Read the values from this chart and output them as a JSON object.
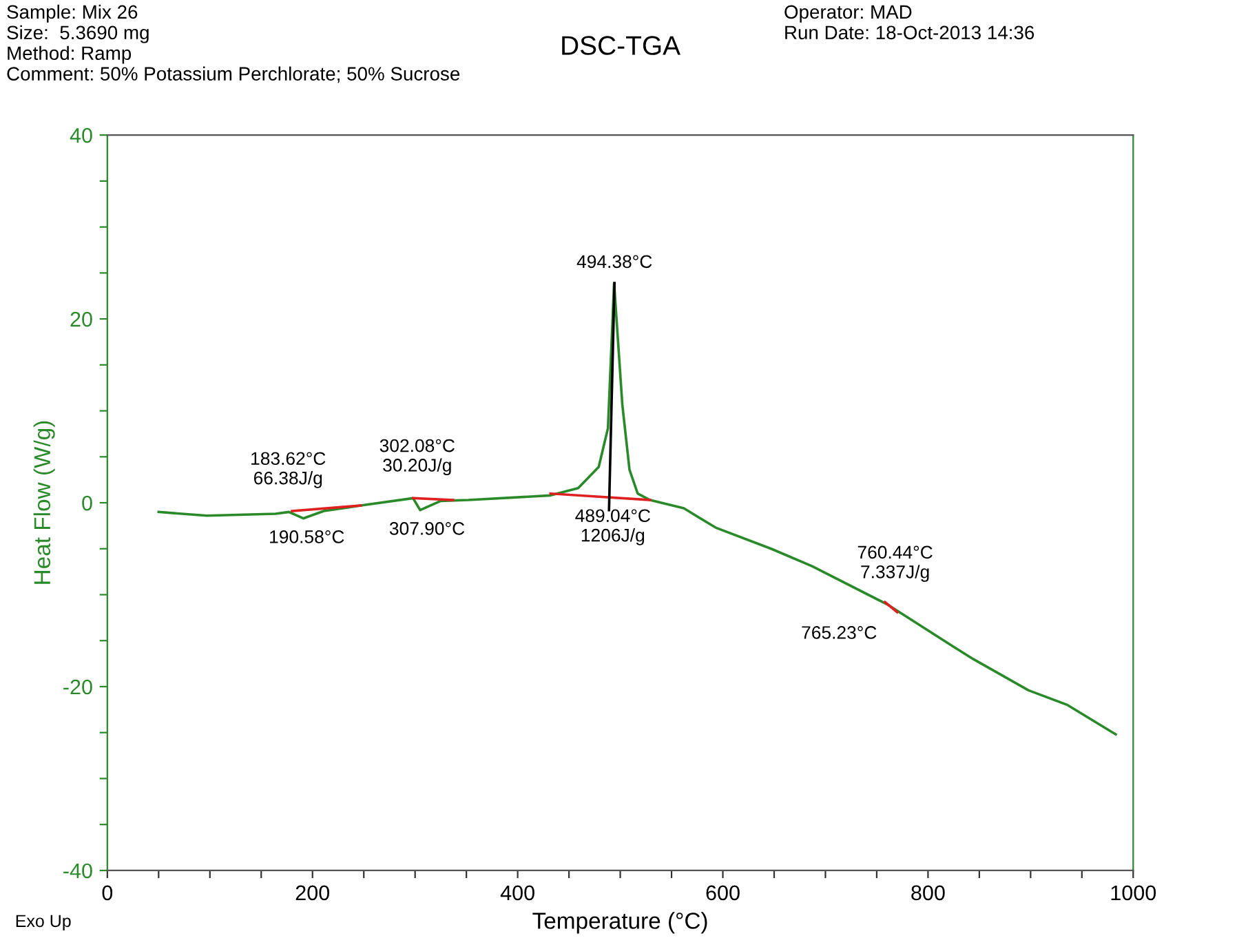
{
  "chart_data": {
    "type": "line",
    "title": "DSC-TGA",
    "xlabel": "Temperature (°C)",
    "ylabel": "Heat Flow (W/g)",
    "xlim": [
      0,
      1000
    ],
    "ylim": [
      -40,
      40
    ],
    "xticks": [
      0,
      {
        "value": 50,
        "label": null
      },
      200,
      {
        "value": 100,
        "label": null
      },
      {
        "value": 150,
        "label": null
      },
      {
        "value": 250,
        "label": null
      },
      {
        "value": 300,
        "label": null
      },
      {
        "value": 350,
        "label": null
      },
      400,
      {
        "value": 450,
        "label": null
      },
      {
        "value": 500,
        "label": null
      },
      {
        "value": 550,
        "label": null
      },
      600,
      {
        "value": 650,
        "label": null
      },
      {
        "value": 700,
        "label": null
      },
      {
        "value": 750,
        "label": null
      },
      800,
      {
        "value": 850,
        "label": null
      },
      {
        "value": 900,
        "label": null
      },
      {
        "value": 950,
        "label": null
      },
      1000
    ],
    "yticks": [
      -40,
      {
        "value": -35,
        "label": null
      },
      {
        "value": -30,
        "label": null
      },
      {
        "value": -25,
        "label": null
      },
      -20,
      {
        "value": -15,
        "label": null
      },
      {
        "value": -10,
        "label": null
      },
      {
        "value": -5,
        "label": null
      },
      0,
      {
        "value": 5,
        "label": null
      },
      {
        "value": 10,
        "label": null
      },
      {
        "value": 15,
        "label": null
      },
      20,
      {
        "value": 25,
        "label": null
      },
      {
        "value": 30,
        "label": null
      },
      {
        "value": 35,
        "label": null
      },
      40
    ],
    "grid": false,
    "legend": false,
    "marker": "none",
    "line_style": "solid",
    "series": [
      {
        "color": "#2a8a2a",
        "x": [
          50,
          97,
          164,
          177,
          191,
          211,
          247,
          298,
          305,
          325,
          352,
          432,
          459,
          479,
          488,
          494,
          502,
          509,
          517,
          529,
          562,
          593,
          647,
          687,
          761,
          824,
          844,
          898,
          936,
          983
        ],
        "values": [
          -1.0,
          -1.4,
          -1.2,
          -1.0,
          -1.7,
          -0.9,
          -0.3,
          0.5,
          -0.8,
          0.2,
          0.3,
          0.8,
          1.6,
          3.9,
          8.1,
          23.9,
          10.7,
          3.6,
          1.0,
          0.3,
          -0.6,
          -2.7,
          -5.0,
          -6.9,
          -11.1,
          -15.6,
          -17.0,
          -20.4,
          -22.0,
          -25.2
        ]
      },
      {
        "color": "#e02020",
        "x": [
          180,
          247
        ],
        "values": [
          -0.9,
          -0.3
        ]
      },
      {
        "color": "#e02020",
        "x": [
          298,
          337
        ],
        "values": [
          0.5,
          0.3
        ]
      },
      {
        "color": "#e02020",
        "x": [
          432,
          529
        ],
        "values": [
          1.0,
          0.3
        ]
      },
      {
        "color": "#e02020",
        "x": [
          758,
          770
        ],
        "values": [
          -10.8,
          -11.9
        ]
      },
      {
        "color": "#000000",
        "x": [
          489.04,
          494.38
        ],
        "values": [
          -0.8,
          23.9
        ]
      }
    ],
    "annotations": [
      "Sample: Mix 26\nSize:  5.3690 mg\nMethod: Ramp\nComment: 50% Potassium Perchlorate; 50% Sucrose",
      "Operator: MAD\nRun Date: 18-Oct-2013 14:36",
      "Exo Up",
      {
        "text": "183.62°C\n66.38J/g",
        "x": 183.62,
        "y": -0.9
      },
      {
        "text": "190.58°C",
        "x": 190.58,
        "y": -1.7
      },
      {
        "text": "302.08°C\n30.20J/g",
        "x": 302.08,
        "y": 0.5
      },
      {
        "text": "307.90°C",
        "x": 307.9,
        "y": -0.8
      },
      {
        "text": "494.38°C",
        "x": 494.38,
        "y": 23.9
      },
      {
        "text": "489.04°C\n1206J/g",
        "x": 489.04,
        "y": 0.6
      },
      {
        "text": "760.44°C\n7.337J/g",
        "x": 760.44,
        "y": -11.1
      },
      {
        "text": "765.23°C",
        "x": 765.23,
        "y": -11.7
      }
    ]
  }
}
